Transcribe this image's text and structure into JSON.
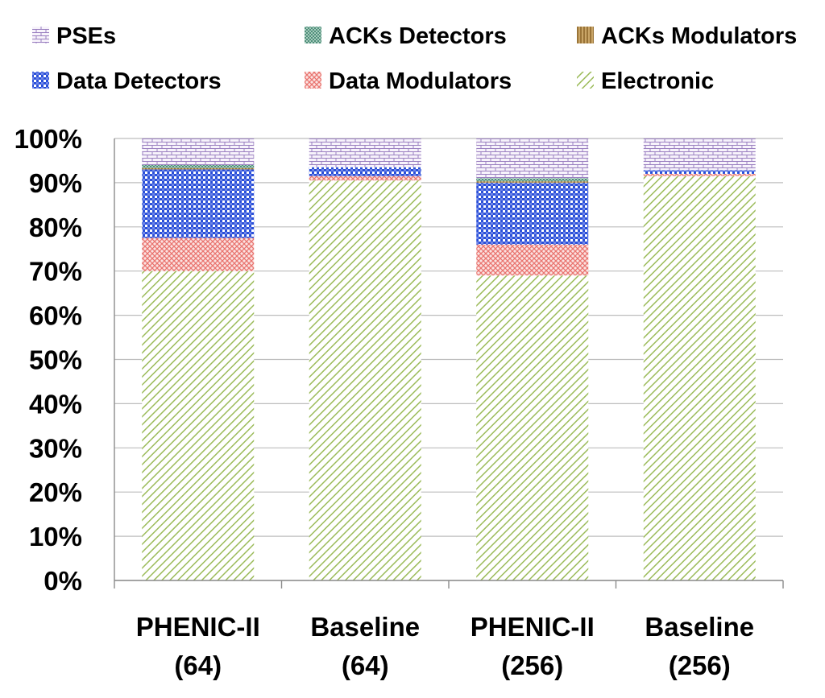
{
  "chart_data": {
    "type": "bar",
    "stacked": true,
    "percent": true,
    "title": "",
    "xlabel": "",
    "ylabel": "",
    "ylim": [
      0,
      100
    ],
    "yticks": [
      "0%",
      "10%",
      "20%",
      "30%",
      "40%",
      "50%",
      "60%",
      "70%",
      "80%",
      "90%",
      "100%"
    ],
    "categories": [
      [
        "PHENIC-II",
        "(64)"
      ],
      [
        "Baseline",
        "(64)"
      ],
      [
        "PHENIC-II",
        "(256)"
      ],
      [
        "Baseline",
        "(256)"
      ]
    ],
    "legend_position": "top",
    "series": [
      {
        "name": "Electronic",
        "key": "electronic",
        "color": "#9bbb59",
        "values": [
          70.0,
          90.5,
          69.0,
          91.5
        ]
      },
      {
        "name": "Data Modulators",
        "key": "data_modulators",
        "color": "#e9746f",
        "values": [
          7.5,
          1.0,
          7.0,
          0.5
        ]
      },
      {
        "name": "Data Detectors",
        "key": "data_detectors",
        "color": "#2a4fd8",
        "values": [
          15.5,
          2.0,
          14.0,
          0.8
        ]
      },
      {
        "name": "ACKs Modulators",
        "key": "acks_modulators",
        "color": "#a07a3c",
        "values": [
          0.3,
          0.0,
          0.3,
          0.0
        ]
      },
      {
        "name": "ACKs Detectors",
        "key": "acks_detectors",
        "color": "#4f8f7a",
        "values": [
          0.7,
          0.0,
          0.7,
          0.0
        ]
      },
      {
        "name": "PSEs",
        "key": "pses",
        "color": "#9a7fc0",
        "values": [
          6.0,
          6.5,
          9.0,
          7.2
        ]
      }
    ],
    "legend_order": [
      "PSEs",
      "ACKs Detectors",
      "ACKs Modulators",
      "Data Detectors",
      "Data Modulators",
      "Electronic"
    ]
  }
}
